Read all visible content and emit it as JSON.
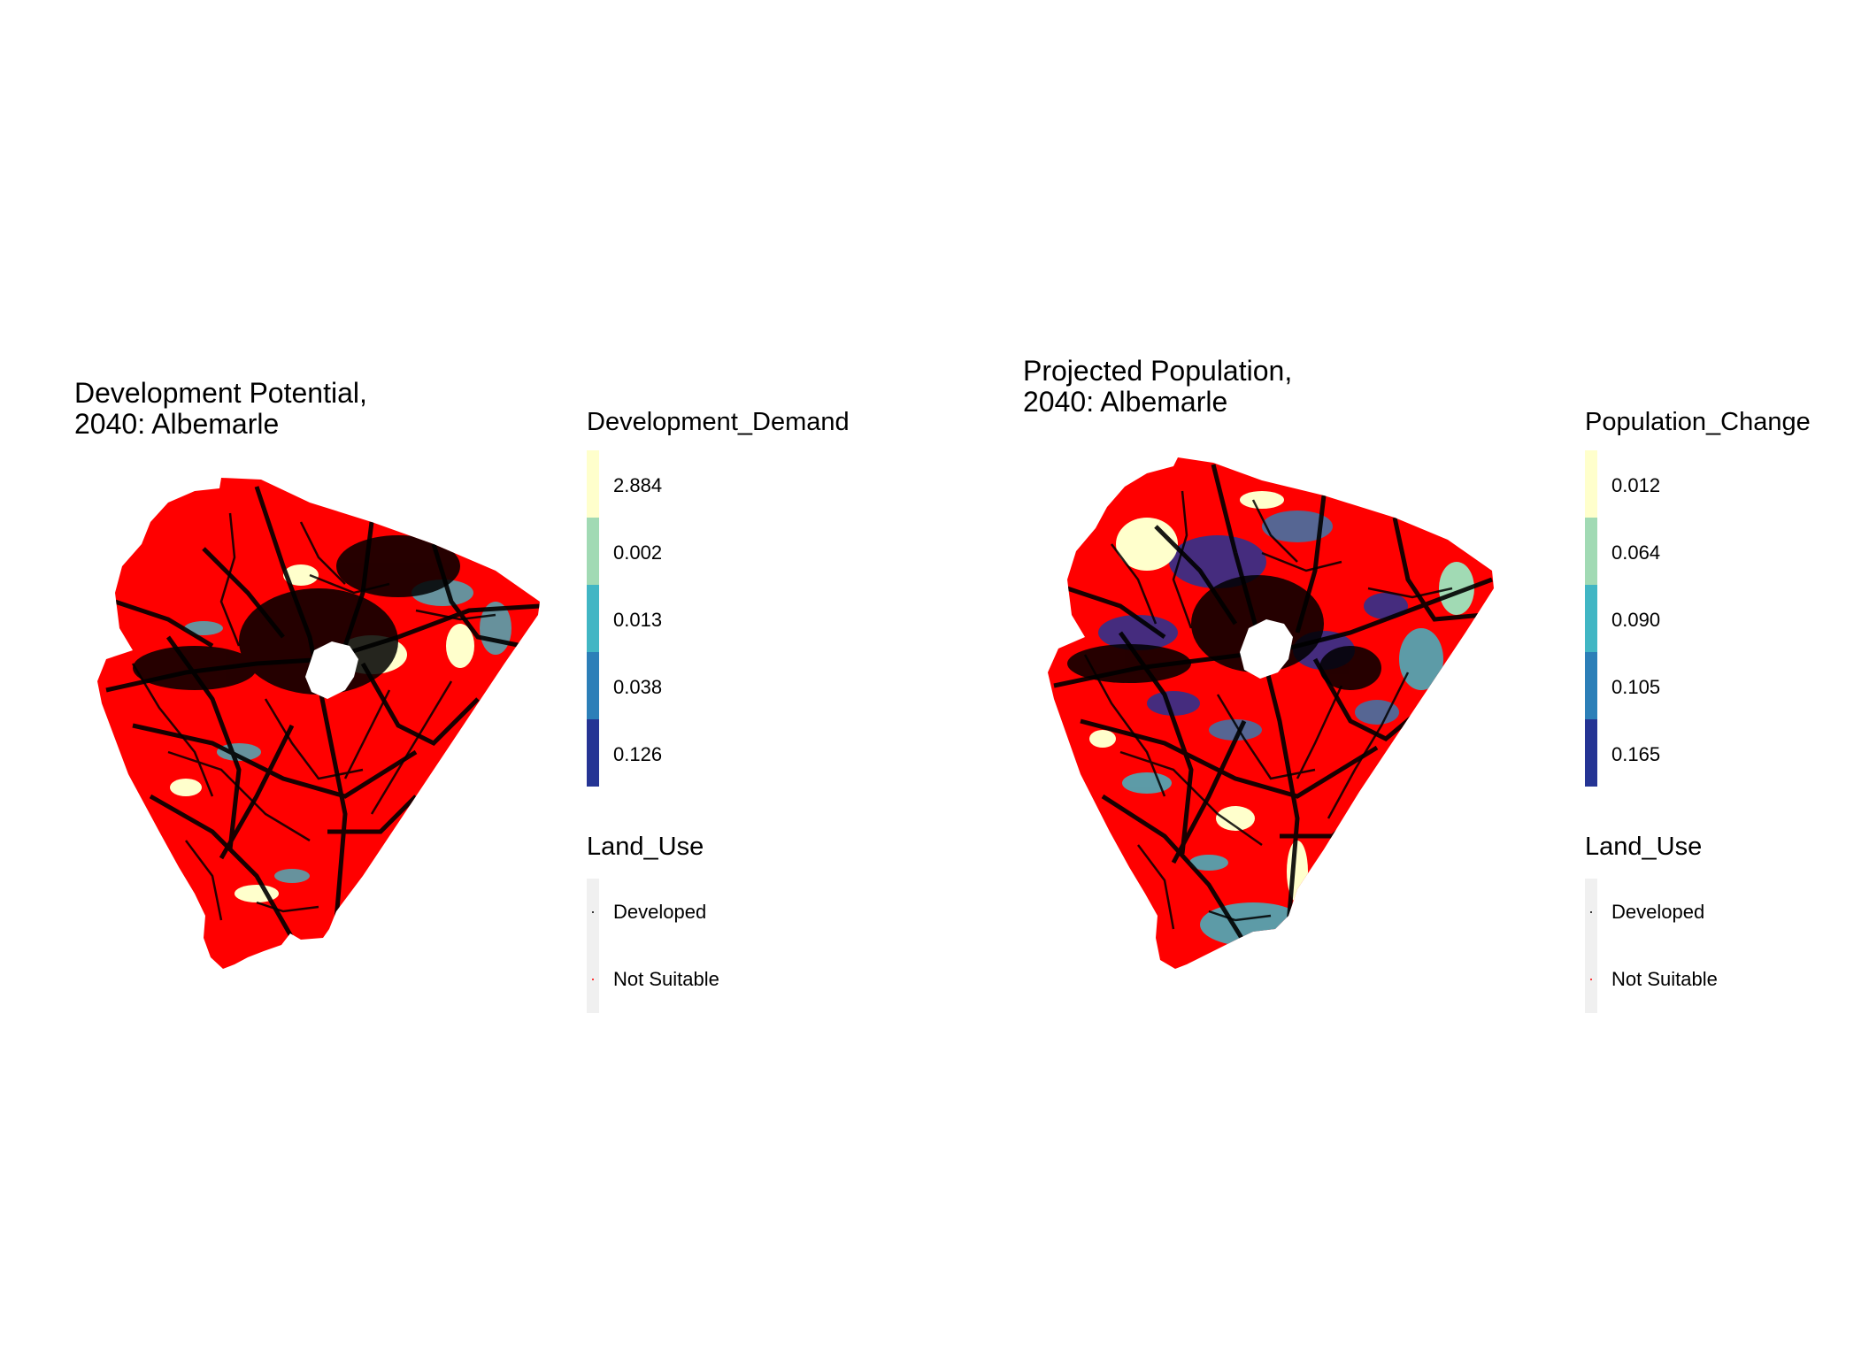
{
  "panels": [
    {
      "title": "Development Potential,\n2040: Albemarle",
      "legend_title": "Development_Demand",
      "scale": [
        {
          "label": "2.884",
          "color": "#ffffcc"
        },
        {
          "label": "0.002",
          "color": "#a1dab4"
        },
        {
          "label": "0.013",
          "color": "#41b6c4"
        },
        {
          "label": "0.038",
          "color": "#2c7fb8"
        },
        {
          "label": "0.126",
          "color": "#253494"
        }
      ],
      "land_use_title": "Land_Use",
      "land_use": [
        {
          "label": "Developed",
          "color": "#000000"
        },
        {
          "label": "Not Suitable",
          "color": "#ff0000"
        }
      ]
    },
    {
      "title": "Projected Population,\n2040: Albemarle",
      "legend_title": "Population_Change",
      "scale": [
        {
          "label": "0.012",
          "color": "#ffffcc"
        },
        {
          "label": "0.064",
          "color": "#a1dab4"
        },
        {
          "label": "0.090",
          "color": "#41b6c4"
        },
        {
          "label": "0.105",
          "color": "#2c7fb8"
        },
        {
          "label": "0.165",
          "color": "#253494"
        }
      ],
      "land_use_title": "Land_Use",
      "land_use": [
        {
          "label": "Developed",
          "color": "#000000"
        },
        {
          "label": "Not Suitable",
          "color": "#ff0000"
        }
      ]
    }
  ]
}
